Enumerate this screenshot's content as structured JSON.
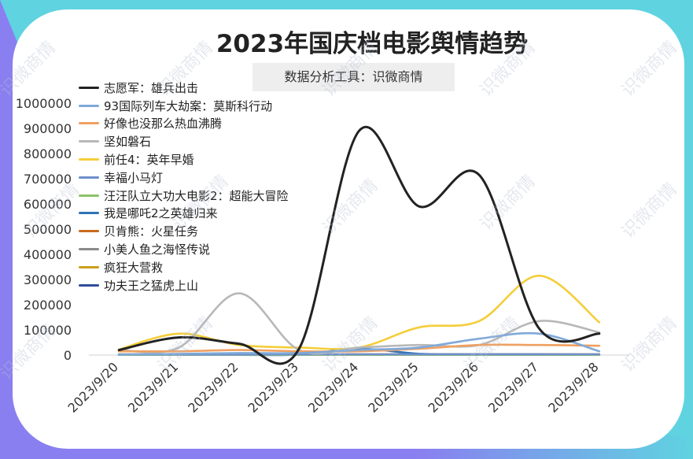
{
  "title": "2023年国庆档电影舆情趋势",
  "subtitle": "数据分析工具：识微商情",
  "watermark_text": "识微商情",
  "chart_data": {
    "type": "line",
    "title": "2023年国庆档电影舆情趋势",
    "subtitle": "数据分析工具：识微商情",
    "x": [
      "2023/9/20",
      "2023/9/21",
      "2023/9/22",
      "2023/9/23",
      "2023/9/24",
      "2023/9/25",
      "2023/9/26",
      "2023/9/27",
      "2023/9/28"
    ],
    "ylim": [
      0,
      1000000
    ],
    "yticks": [
      0,
      100000,
      200000,
      300000,
      400000,
      500000,
      600000,
      700000,
      800000,
      900000,
      1000000
    ],
    "legend_position": "top-left",
    "grid": false,
    "smooth": true,
    "series": [
      {
        "name": "志愿军：雄兵出击",
        "color": "#222222",
        "values": [
          20000,
          70000,
          45000,
          25000,
          890000,
          590000,
          715000,
          105000,
          85000
        ]
      },
      {
        "name": "93国际列车大劫案：莫斯科行动",
        "color": "#7fa9d9",
        "values": [
          2000,
          5000,
          8000,
          8000,
          20000,
          30000,
          65000,
          85000,
          15000
        ]
      },
      {
        "name": "好像也没那么热血沸腾",
        "color": "#f0a060",
        "values": [
          15000,
          15000,
          20000,
          15000,
          15000,
          25000,
          40000,
          40000,
          37000
        ]
      },
      {
        "name": "坚如磐石",
        "color": "#b8b8b8",
        "values": [
          20000,
          30000,
          245000,
          20000,
          30000,
          40000,
          40000,
          135000,
          90000
        ]
      },
      {
        "name": "前任4：英年早婚",
        "color": "#f5cd3a",
        "values": [
          22000,
          85000,
          40000,
          30000,
          30000,
          110000,
          135000,
          315000,
          130000
        ]
      },
      {
        "name": "幸福小马灯",
        "color": "#6f8fcc",
        "values": [
          2000,
          2000,
          2000,
          3000,
          3000,
          3000,
          3000,
          3000,
          3000
        ]
      },
      {
        "name": "汪汪队立大功大电影2：超能大冒险",
        "color": "#8cc36a",
        "values": [
          1000,
          1000,
          1000,
          1000,
          1000,
          1000,
          1000,
          1000,
          1000
        ]
      },
      {
        "name": "我是哪吒2之英雄归来",
        "color": "#2e73b8",
        "values": [
          1000,
          1000,
          1000,
          2000,
          25000,
          5000,
          3000,
          3000,
          2000
        ]
      },
      {
        "name": "贝肯熊：火星任务",
        "color": "#c86a1e",
        "values": [
          3000,
          3000,
          3000,
          3000,
          3000,
          3000,
          3000,
          3000,
          3000
        ]
      },
      {
        "name": "小美人鱼之海怪传说",
        "color": "#8a8a8a",
        "values": [
          2000,
          2000,
          2000,
          2000,
          2000,
          2000,
          2000,
          2000,
          2000
        ]
      },
      {
        "name": "疯狂大营救",
        "color": "#c9a01a",
        "values": [
          1500,
          1500,
          1500,
          1500,
          1500,
          1500,
          1500,
          1500,
          1500
        ]
      },
      {
        "name": "功夫王之猛虎上山",
        "color": "#2f4d9a",
        "values": [
          1000,
          1000,
          1000,
          1000,
          1000,
          1000,
          1000,
          1000,
          1000
        ]
      }
    ]
  }
}
